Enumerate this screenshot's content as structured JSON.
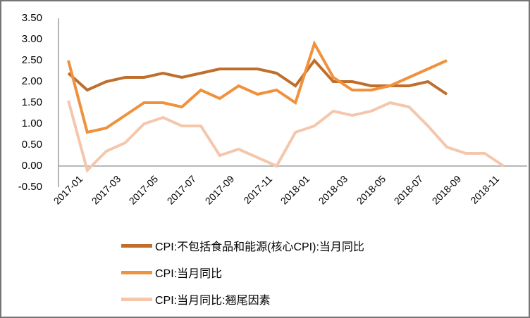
{
  "chart_data": {
    "type": "line",
    "title": "",
    "xlabel": "",
    "ylabel": "",
    "grid": false,
    "legend_position": "bottom-left",
    "ylim": [
      -0.5,
      3.5
    ],
    "y_tick_step": 0.5,
    "y_ticks": [
      "3.50",
      "3.00",
      "2.50",
      "2.00",
      "1.50",
      "1.00",
      "0.50",
      "0.00",
      "-0.50"
    ],
    "x_ticks": [
      "2017-01",
      "2017-03",
      "2017-05",
      "2017-07",
      "2017-09",
      "2017-11",
      "2018-01",
      "2018-03",
      "2018-05",
      "2018-07",
      "2018-09",
      "2018-11"
    ],
    "categories": [
      "2017-01",
      "2017-02",
      "2017-03",
      "2017-04",
      "2017-05",
      "2017-06",
      "2017-07",
      "2017-08",
      "2017-09",
      "2017-10",
      "2017-11",
      "2017-12",
      "2018-01",
      "2018-02",
      "2018-03",
      "2018-04",
      "2018-05",
      "2018-06",
      "2018-07",
      "2018-08",
      "2018-09",
      "2018-10",
      "2018-11",
      "2018-12"
    ],
    "series": [
      {
        "name": "CPI:不包括食品和能源(核心CPI):当月同比",
        "color": "#BF6E2C",
        "values": [
          2.2,
          1.8,
          2.0,
          2.1,
          2.1,
          2.2,
          2.1,
          2.2,
          2.3,
          2.3,
          2.3,
          2.2,
          1.9,
          2.5,
          2.0,
          2.0,
          1.9,
          1.9,
          1.9,
          2.0,
          1.7
        ]
      },
      {
        "name": "CPI:当月同比",
        "color": "#F0913C",
        "values": [
          2.5,
          0.8,
          0.9,
          1.2,
          1.5,
          1.5,
          1.4,
          1.8,
          1.6,
          1.9,
          1.7,
          1.8,
          1.5,
          2.9,
          2.1,
          1.8,
          1.8,
          1.9,
          2.1,
          2.3,
          2.5
        ]
      },
      {
        "name": "CPI:当月同比:翘尾因素",
        "color": "#F4C7AD",
        "values": [
          1.55,
          -0.1,
          0.35,
          0.55,
          1.0,
          1.15,
          0.95,
          0.95,
          0.25,
          0.4,
          0.2,
          0.0,
          0.8,
          0.95,
          1.3,
          1.2,
          1.3,
          1.5,
          1.4,
          0.95,
          0.45,
          0.3,
          0.3,
          0.0
        ]
      }
    ],
    "axis_color": "#8C8C8C"
  }
}
